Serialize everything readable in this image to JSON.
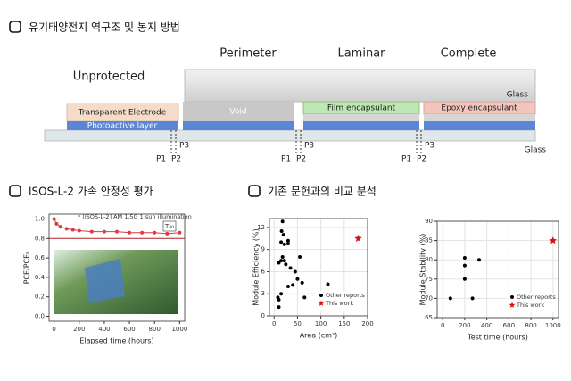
{
  "sections": [
    "유기태양전지 역구조 및 봉지 방법",
    "ISOS-L-2 가속 안정성 평가",
    "기존 문헌과의 비교 분석"
  ],
  "diagram": {
    "columns": [
      "Unprotected",
      "Perimeter",
      "Laminar",
      "Complete"
    ],
    "layers": {
      "top_glass": "Glass",
      "electrode": "Transparent Electrode",
      "photoactive": "Photoactive layer",
      "void": "Void",
      "film": "Film encapsulant",
      "epoxy": "Epoxy encapsulant",
      "bottom_glass": "Glass"
    },
    "scribes": [
      {
        "p1": "P1",
        "p2": "P2",
        "p3": "P3"
      },
      {
        "p1": "P1",
        "p2": "P2",
        "p3": "P3"
      },
      {
        "p1": "P1",
        "p2": "P2",
        "p3": "P3"
      }
    ]
  },
  "chart_data": [
    {
      "type": "line",
      "x_label": "Elapsed time (hours)",
      "y_label": "PCE/PCE₀",
      "annotations": [
        "* [ISOS-L-2] AM 1.5G 1 sun illumination",
        "T₈₀"
      ],
      "xlim": [
        -40,
        1040
      ],
      "xticks": [
        0,
        200,
        400,
        600,
        800,
        1000
      ],
      "ylim": [
        -0.05,
        1.05
      ],
      "yticks": [
        {
          "value": 0,
          "label": "0.0"
        },
        0.2,
        0.4,
        0.6,
        0.8,
        {
          "value": 1,
          "label": "1.0"
        }
      ],
      "threshold": 0.8,
      "grid": false,
      "series": [
        {
          "color": "#e0393e",
          "marker": "circle",
          "x": [
            0,
            20,
            50,
            100,
            150,
            200,
            300,
            400,
            500,
            600,
            700,
            800,
            900,
            1000
          ],
          "values": [
            1.0,
            0.95,
            0.92,
            0.9,
            0.89,
            0.88,
            0.87,
            0.87,
            0.87,
            0.86,
            0.86,
            0.86,
            0.85,
            0.86
          ]
        }
      ]
    },
    {
      "type": "scatter",
      "x_label": "Area (cm²)",
      "y_label": "Module Efficiency (%)",
      "xlim": [
        -10,
        200
      ],
      "xticks": [
        0,
        50,
        100,
        150,
        200
      ],
      "ylim": [
        0,
        13.2
      ],
      "yticks": [
        0,
        3,
        6,
        9,
        12
      ],
      "grid": true,
      "legend": "lower right",
      "series": [
        {
          "name": "Other reports",
          "color": "#000000",
          "marker": "circle",
          "x": [
            18,
            16,
            20,
            15,
            22,
            30,
            30,
            18,
            22,
            10,
            15,
            25,
            35,
            45,
            55,
            50,
            60,
            40,
            30,
            15,
            10,
            8,
            10,
            65,
            115
          ],
          "values": [
            12.8,
            11.5,
            11,
            10,
            9.7,
            10.2,
            9.8,
            8,
            7.5,
            7.2,
            7.5,
            7,
            6.5,
            6,
            8,
            5,
            4.5,
            4.2,
            4,
            3,
            2.2,
            2.5,
            1.2,
            2.5,
            4.3
          ]
        },
        {
          "name": "This work",
          "color": "#e01010",
          "marker": "star",
          "x": [
            180
          ],
          "values": [
            10.5
          ]
        }
      ]
    },
    {
      "type": "scatter",
      "x_label": "Test time (hours)",
      "y_label": "Module Stability (%)",
      "xlim": [
        -50,
        1050
      ],
      "xticks": [
        0,
        200,
        400,
        600,
        800,
        1000
      ],
      "ylim": [
        65,
        90
      ],
      "yticks": [
        65,
        70,
        75,
        80,
        85,
        90
      ],
      "grid": true,
      "legend": "lower right",
      "series": [
        {
          "name": "Other reports",
          "color": "#000000",
          "marker": "circle",
          "x": [
            70,
            200,
            200,
            200,
            270,
            330
          ],
          "values": [
            70,
            80.5,
            78.5,
            75,
            70,
            80
          ]
        },
        {
          "name": "This work",
          "color": "#e01010",
          "marker": "star",
          "x": [
            1000
          ],
          "values": [
            85
          ]
        }
      ]
    }
  ]
}
